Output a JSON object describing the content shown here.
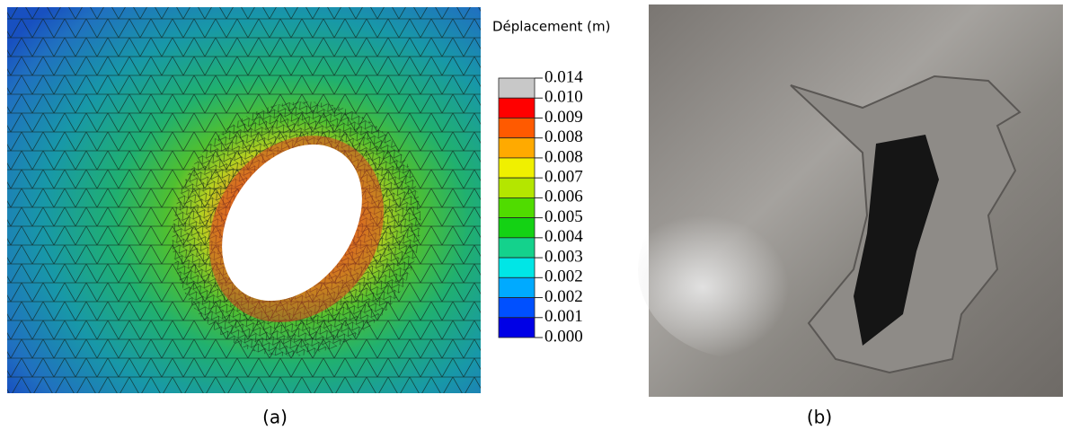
{
  "legend": {
    "title": "Déplacement (m)",
    "labels": [
      "0.014",
      "0.010",
      "0.009",
      "0.008",
      "0.008",
      "0.007",
      "0.006",
      "0.005",
      "0.004",
      "0.003",
      "0.002",
      "0.002",
      "0.001",
      "0.000"
    ],
    "colors": [
      "#c8c8c8",
      "#ff0000",
      "#ff5a00",
      "#ffaa00",
      "#f0f000",
      "#b4e600",
      "#50dc00",
      "#14d214",
      "#14d28c",
      "#00e6e6",
      "#00aaff",
      "#0050ff",
      "#0000e6"
    ]
  },
  "captions": {
    "a": "(a)",
    "b": "(b)"
  }
}
